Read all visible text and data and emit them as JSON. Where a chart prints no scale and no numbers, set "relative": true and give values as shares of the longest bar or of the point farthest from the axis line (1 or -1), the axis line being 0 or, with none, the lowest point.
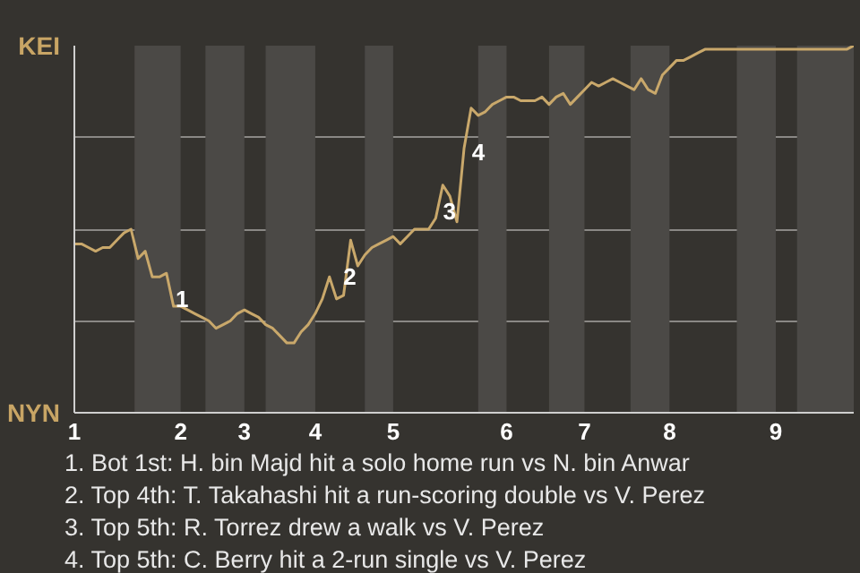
{
  "chart_data": {
    "type": "line",
    "relative": true,
    "categories": [
      "1",
      null,
      null,
      null,
      null,
      null,
      null,
      null,
      null,
      null,
      null,
      null,
      null,
      null,
      null,
      "2",
      null,
      null,
      null,
      null,
      null,
      null,
      null,
      null,
      "3",
      null,
      null,
      null,
      null,
      null,
      null,
      null,
      null,
      null,
      "4",
      null,
      null,
      null,
      null,
      null,
      null,
      null,
      null,
      null,
      null,
      "5",
      null,
      null,
      null,
      null,
      null,
      null,
      null,
      null,
      null,
      null,
      null,
      null,
      null,
      null,
      null,
      "6",
      null,
      null,
      null,
      null,
      null,
      null,
      null,
      null,
      null,
      null,
      "7",
      null,
      null,
      null,
      null,
      null,
      null,
      null,
      null,
      null,
      null,
      null,
      "8",
      null,
      null,
      null,
      null,
      null,
      null,
      null,
      null,
      null,
      null,
      null,
      null,
      null,
      null,
      "9",
      null,
      null,
      null,
      null,
      null,
      null,
      null,
      null,
      null,
      null,
      null
    ],
    "series": [
      {
        "color": "#c9a86b",
        "values": [
          0.46,
          0.46,
          0.45,
          0.44,
          0.45,
          0.45,
          0.47,
          0.49,
          0.5,
          0.42,
          0.44,
          0.37,
          0.37,
          0.38,
          0.29,
          0.29,
          0.28,
          0.27,
          0.26,
          0.25,
          0.23,
          0.24,
          0.25,
          0.27,
          0.28,
          0.27,
          0.26,
          0.24,
          0.23,
          0.21,
          0.19,
          0.19,
          0.22,
          0.24,
          0.27,
          0.31,
          0.37,
          0.31,
          0.32,
          0.47,
          0.4,
          0.43,
          0.45,
          0.46,
          0.47,
          0.48,
          0.46,
          0.48,
          0.5,
          0.5,
          0.5,
          0.53,
          0.62,
          0.59,
          0.52,
          0.72,
          0.83,
          0.81,
          0.82,
          0.84,
          0.85,
          0.86,
          0.86,
          0.85,
          0.85,
          0.85,
          0.86,
          0.84,
          0.86,
          0.87,
          0.84,
          0.86,
          0.88,
          0.9,
          0.89,
          0.9,
          0.91,
          0.9,
          0.89,
          0.88,
          0.91,
          0.88,
          0.87,
          0.92,
          0.94,
          0.96,
          0.96,
          0.97,
          0.98,
          0.99,
          0.99,
          0.99,
          0.99,
          0.99,
          0.99,
          0.99,
          0.99,
          0.99,
          0.99,
          0.99,
          0.99,
          0.99,
          0.99,
          0.99,
          0.99,
          0.99,
          0.99,
          0.99,
          0.99,
          0.99,
          1.0
        ]
      }
    ],
    "grid": "y",
    "annotations": [
      "KEI",
      "NYN",
      "1",
      "2",
      "3",
      "4",
      "1. Bot 1st: H. bin Majd hit a solo home run vs N. bin Anwar",
      "2. Top 4th: T. Takahashi hit a run-scoring double vs V. Perez",
      "3. Top 5th: R. Torrez drew a walk vs V. Perez",
      "4. Top 5th: C. Berry hit a 2-run single vs V. Perez"
    ]
  }
}
